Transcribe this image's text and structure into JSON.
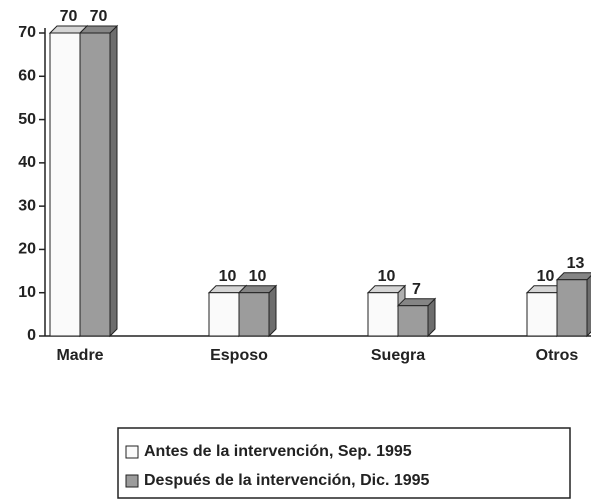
{
  "chart_data": {
    "type": "bar3d",
    "categories": [
      "Madre",
      "Esposo",
      "Suegra",
      "Otros"
    ],
    "series": [
      {
        "name": "Antes de la intervención, Sep. 1995",
        "color": "#fafafa",
        "values": [
          70,
          10,
          10,
          10
        ]
      },
      {
        "name": "Después de la intervención, Dic. 1995",
        "color": "#9c9c9c",
        "values": [
          70,
          10,
          7,
          13
        ]
      }
    ],
    "ylim": [
      0,
      70
    ],
    "yticks": [
      0,
      10,
      20,
      30,
      40,
      50,
      60,
      70
    ]
  }
}
